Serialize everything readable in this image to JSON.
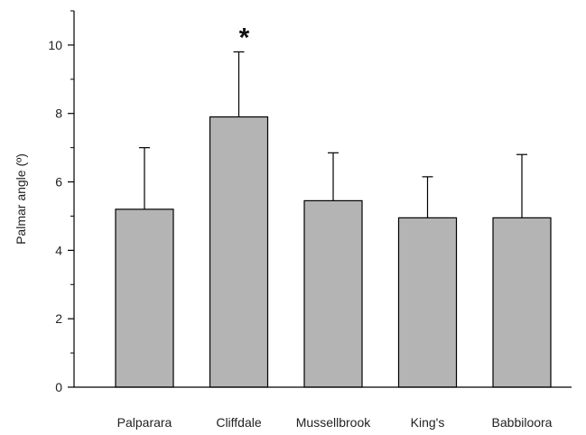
{
  "chart_data": {
    "type": "bar",
    "categories": [
      "Palparara",
      "Cliffdale",
      "Mussellbrook",
      "King's",
      "Babbiloora"
    ],
    "values": [
      5.2,
      7.9,
      5.45,
      4.95,
      4.95
    ],
    "error_upper": [
      7.0,
      9.8,
      6.85,
      6.15,
      6.8
    ],
    "ylabel": "Palmar angle (º)",
    "xlabel": "",
    "ylim": [
      0,
      11
    ],
    "yticks": [
      0,
      2,
      4,
      6,
      8,
      10
    ],
    "grid": false,
    "annotations": [
      {
        "text": "*",
        "category": "Cliffdale"
      }
    ],
    "colors": {
      "bar_fill": "#b4b4b4",
      "bar_stroke": "#000000",
      "axis": "#000000"
    }
  }
}
